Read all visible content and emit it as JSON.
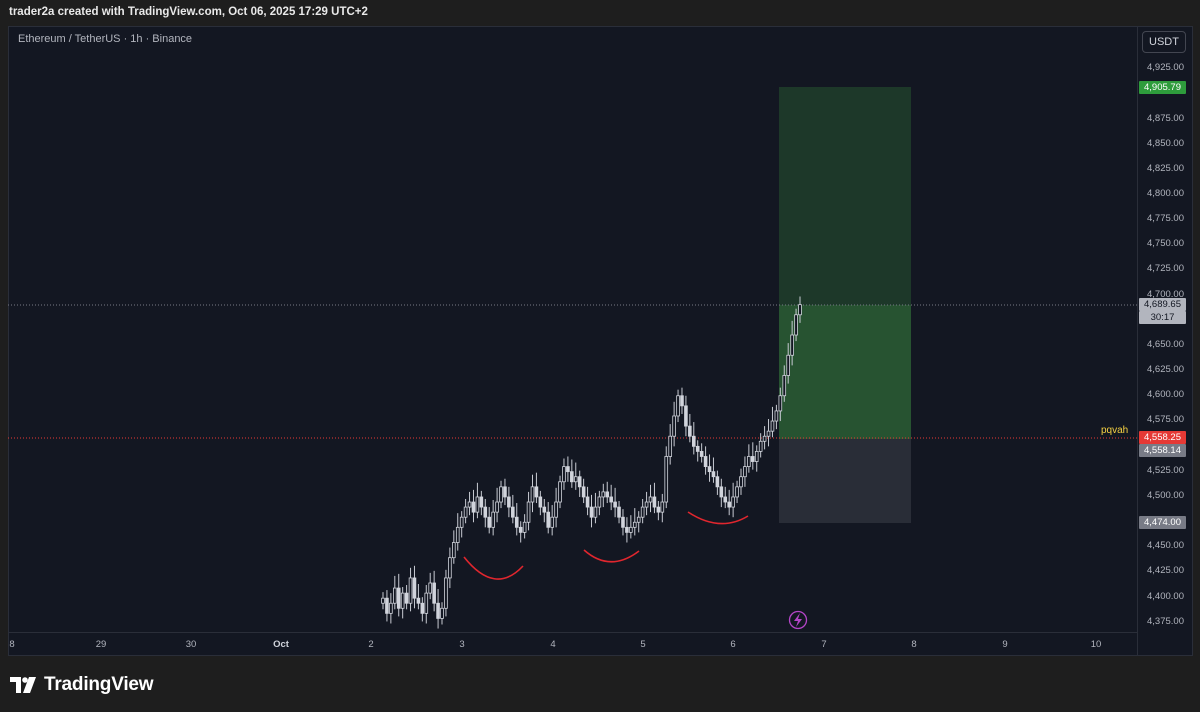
{
  "header": {
    "text": "trader2a created with TradingView.com, Oct 06, 2025 17:29 UTC+2"
  },
  "chart": {
    "symbol_title": "Ethereum / TetherUS · 1h · Binance",
    "currency_button": "USDT",
    "date_ticks": [
      "8",
      "29",
      "30",
      "Oct",
      "2",
      "3",
      "4",
      "5",
      "6",
      "7",
      "8",
      "9",
      "10"
    ],
    "price_ticks": [
      "4,925.00",
      "4,875.00",
      "4,850.00",
      "4,825.00",
      "4,800.00",
      "4,775.00",
      "4,750.00",
      "4,725.00",
      "4,700.00",
      "4,650.00",
      "4,625.00",
      "4,600.00",
      "4,575.00",
      "4,525.00",
      "4,500.00",
      "4,450.00",
      "4,425.00",
      "4,400.00",
      "4,375.00"
    ],
    "badges": {
      "target": "4,905.79",
      "current_price": "4,689.65",
      "countdown": "30:17",
      "entry": "4,558.25",
      "entry_alt": "4,558.14",
      "stop": "4,474.00"
    },
    "line_label": "pqvah",
    "colors": {
      "background": "#131722",
      "up_candle": "#d1d4dc",
      "target_badge": "#2e9c3c",
      "entry_badge": "#e53935",
      "stop_badge": "#787b86",
      "current_badge": "#b2b5be",
      "profit_zone": "#1e3a2a",
      "loss_zone": "#2a2e39",
      "pattern_curves": "#e0262e",
      "pqvah_label": "#f5d142"
    },
    "icons": [
      "flash-icon"
    ]
  },
  "footer": {
    "brand": "TradingView",
    "logo_icon": "tradingview-logo-icon"
  },
  "chart_data": {
    "type": "candlestick",
    "symbol": "Ethereum / TetherUS",
    "interval": "1h",
    "exchange": "Binance",
    "y_axis_range": [
      4360,
      4935
    ],
    "x_axis": [
      "8",
      "29",
      "30",
      "Oct",
      "2",
      "3",
      "4",
      "5",
      "6",
      "7",
      "8",
      "9",
      "10"
    ],
    "last_price": 4689.65,
    "long_position": {
      "entry": 4558.25,
      "target": 4905.79,
      "stop": 4474.0
    },
    "horizontal_line": {
      "label": "pqvah",
      "price": 4558.14
    }
  }
}
